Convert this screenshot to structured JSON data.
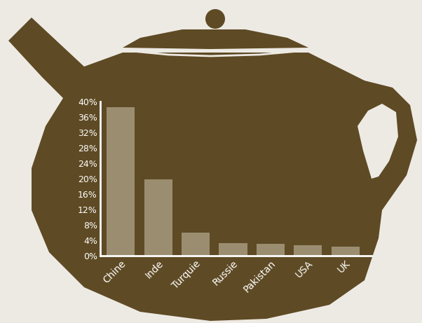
{
  "chart_data": {
    "type": "bar",
    "categories": [
      "Chine",
      "Inde",
      "Turquie",
      "Russie",
      "Pakistan",
      "USA",
      "UK"
    ],
    "values": [
      38.5,
      19.8,
      6.0,
      3.3,
      3.1,
      2.8,
      2.4
    ],
    "color": "#9b8e70",
    "ylim": [
      0,
      40
    ],
    "yticks": [
      {
        "value": 0,
        "label": "0%"
      },
      {
        "value": 4,
        "label": "4%"
      },
      {
        "value": 8,
        "label": "8%"
      },
      {
        "value": 12,
        "label": "12%"
      },
      {
        "value": 16,
        "label": "16%"
      },
      {
        "value": 20,
        "label": "20%"
      },
      {
        "value": 24,
        "label": "24%"
      },
      {
        "value": 28,
        "label": "28%"
      },
      {
        "value": 32,
        "label": "32%"
      },
      {
        "value": 36,
        "label": "36%"
      },
      {
        "value": 40,
        "label": "40%"
      }
    ],
    "grid": false
  }
}
